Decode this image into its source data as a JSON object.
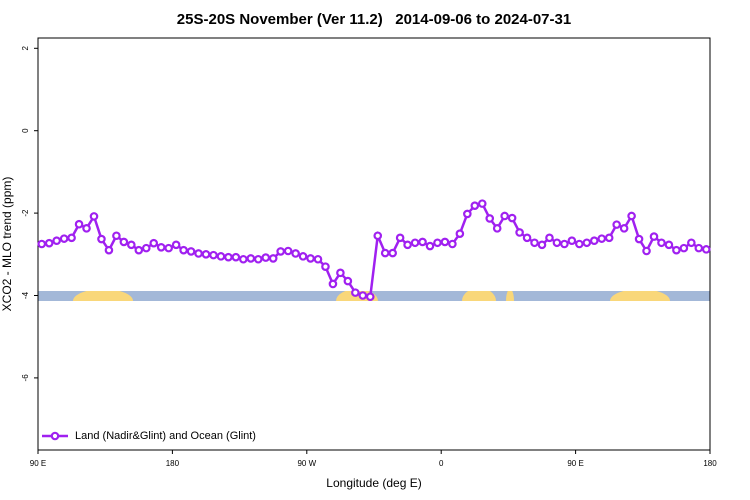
{
  "chart_data": {
    "type": "line",
    "title": "25S-20S November (Ver 11.2)   2014-09-06 to 2024-07-31",
    "xlabel": "Longitude (deg E)",
    "ylabel": "XCO2 - MLO trend (ppm)",
    "xlim": [
      90,
      540
    ],
    "ylim": [
      -7.75,
      2.25
    ],
    "xticks": [
      {
        "value": 90,
        "label": "90 E"
      },
      180,
      {
        "value": 270,
        "label": "90 W"
      },
      {
        "value": 360,
        "label": "0"
      },
      {
        "value": 450,
        "label": "90 E"
      },
      {
        "value": 540,
        "label": "180"
      }
    ],
    "yticks": [
      2,
      0,
      -2,
      -4,
      -6
    ],
    "legend": "bottom left",
    "x": [
      92.5,
      97.5,
      102.5,
      107.5,
      112.5,
      117.5,
      122.5,
      127.5,
      132.5,
      137.5,
      142.5,
      147.5,
      152.5,
      157.5,
      162.5,
      167.5,
      172.5,
      177.5,
      182.5,
      187.5,
      192.5,
      197.5,
      202.5,
      207.5,
      212.5,
      217.5,
      222.5,
      227.5,
      232.5,
      237.5,
      242.5,
      247.5,
      252.5,
      257.5,
      262.5,
      267.5,
      272.5,
      277.5,
      282.5,
      287.5,
      292.5,
      297.5,
      302.5,
      307.5,
      312.5,
      317.5,
      322.5,
      327.5,
      332.5,
      337.5,
      342.5,
      347.5,
      352.5,
      357.5,
      362.5,
      367.5,
      372.5,
      377.5,
      382.5,
      387.5,
      392.5,
      397.5,
      402.5,
      407.5,
      412.5,
      417.5,
      422.5,
      427.5,
      432.5,
      437.5,
      442.5,
      447.5,
      452.5,
      457.5,
      462.5,
      467.5,
      472.5,
      477.5,
      482.5,
      487.5,
      492.5,
      497.5,
      502.5,
      507.5,
      512.5,
      517.5,
      522.5,
      527.5,
      532.5,
      537.5
    ],
    "series": [
      {
        "name": "Land (Nadir&Glint) and Ocean (Glint)",
        "color": "#a020f0",
        "values": [
          -2.75,
          -2.73,
          -2.67,
          -2.62,
          -2.6,
          -2.27,
          -2.37,
          -2.08,
          -2.63,
          -2.9,
          -2.55,
          -2.7,
          -2.77,
          -2.9,
          -2.85,
          -2.73,
          -2.83,
          -2.85,
          -2.77,
          -2.9,
          -2.93,
          -2.98,
          -3.0,
          -3.02,
          -3.05,
          -3.07,
          -3.07,
          -3.12,
          -3.1,
          -3.12,
          -3.08,
          -3.1,
          -2.93,
          -2.92,
          -2.98,
          -3.05,
          -3.1,
          -3.12,
          -3.3,
          -3.72,
          -3.45,
          -3.65,
          -3.93,
          -4.0,
          -4.03,
          -2.55,
          -2.97,
          -2.97,
          -2.6,
          -2.77,
          -2.72,
          -2.7,
          -2.8,
          -2.72,
          -2.7,
          -2.75,
          -2.5,
          -2.02,
          -1.82,
          -1.77,
          -2.13,
          -2.37,
          -2.07,
          -2.12,
          -2.47,
          -2.6,
          -2.72,
          -2.77,
          -2.6,
          -2.72,
          -2.75,
          -2.67,
          -2.75,
          -2.72,
          -2.67,
          -2.62,
          -2.6,
          -2.28,
          -2.37,
          -2.07,
          -2.63,
          -2.92,
          -2.57,
          -2.72,
          -2.77,
          -2.9,
          -2.85,
          -2.72,
          -2.85,
          -2.88
        ]
      }
    ]
  }
}
